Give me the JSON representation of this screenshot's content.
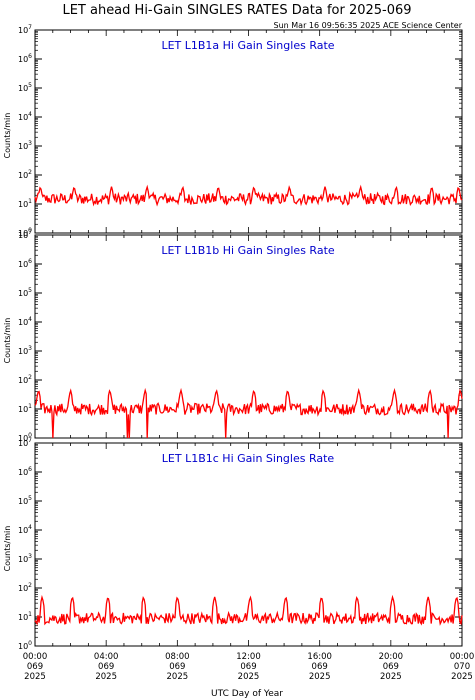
{
  "figure": {
    "title": "LET ahead Hi-Gain SINGLES RATES Data for 2025-069",
    "timestamp": "Sun Mar 16 09:56:35 2025 ACE Science Center",
    "xlabel": "UTC Day of Year"
  },
  "colors": {
    "series": "#ff0000",
    "panel_title": "#0000cc",
    "axes": "#000000"
  },
  "chart_data": [
    {
      "type": "line",
      "title": "LET L1B1a Hi Gain Singles Rate",
      "ylabel": "Counts/min",
      "yscale": "log",
      "ylim": [
        1,
        10000000
      ],
      "xlim": [
        0,
        24
      ],
      "x_unit": "hours UTC",
      "y_tick_labels": [
        "10^0",
        "10^1",
        "10^2",
        "10^3",
        "10^4",
        "10^5",
        "10^6",
        "10^7"
      ],
      "series": [
        {
          "values_description_free": true,
          "baseline": 15,
          "noise_low": 7,
          "noise_high": 30,
          "spike_max": 40,
          "spike_hours": [
            0.3,
            2.2,
            4.3,
            6.3,
            8.3,
            10.3,
            12.3,
            14.3,
            16.3,
            18.3,
            20.3,
            22.3,
            23.8
          ]
        }
      ]
    },
    {
      "type": "line",
      "title": "LET L1B1b Hi Gain Singles Rate",
      "ylabel": "Counts/min",
      "yscale": "log",
      "ylim": [
        1,
        10000000
      ],
      "xlim": [
        0,
        24
      ],
      "x_unit": "hours UTC",
      "y_tick_labels": [
        "10^0",
        "10^1",
        "10^2",
        "10^3",
        "10^4",
        "10^5",
        "10^6",
        "10^7"
      ],
      "series": [
        {
          "baseline": 10,
          "noise_low": 4,
          "noise_high": 25,
          "spike_max": 45,
          "spike_hours": [
            0.2,
            2.0,
            4.2,
            6.2,
            8.2,
            10.2,
            12.3,
            14.2,
            16.2,
            18.2,
            20.2,
            22.2,
            23.9
          ],
          "dip_hours": [
            1.0,
            5.2,
            5.3,
            6.3,
            10.7,
            23.2
          ]
        }
      ]
    },
    {
      "type": "line",
      "title": "LET L1B1c Hi Gain Singles Rate",
      "ylabel": "Counts/min",
      "yscale": "log",
      "ylim": [
        1,
        10000000
      ],
      "xlim": [
        0,
        24
      ],
      "x_unit": "hours UTC",
      "y_tick_labels": [
        "10^0",
        "10^1",
        "10^2",
        "10^3",
        "10^4",
        "10^5",
        "10^6",
        "10^7"
      ],
      "series": [
        {
          "baseline": 9,
          "noise_low": 4,
          "noise_high": 20,
          "spike_max": 50,
          "spike_hours": [
            0.4,
            2.1,
            4.1,
            6.1,
            8.0,
            10.1,
            12.1,
            14.1,
            16.1,
            18.1,
            20.1,
            22.1,
            23.7
          ]
        }
      ]
    }
  ],
  "x_ticks": [
    {
      "hour": 0,
      "time": "00:00",
      "doy": "069",
      "year": "2025"
    },
    {
      "hour": 4,
      "time": "04:00",
      "doy": "069",
      "year": "2025"
    },
    {
      "hour": 8,
      "time": "08:00",
      "doy": "069",
      "year": "2025"
    },
    {
      "hour": 12,
      "time": "12:00",
      "doy": "069",
      "year": "2025"
    },
    {
      "hour": 16,
      "time": "16:00",
      "doy": "069",
      "year": "2025"
    },
    {
      "hour": 20,
      "time": "20:00",
      "doy": "069",
      "year": "2025"
    },
    {
      "hour": 24,
      "time": "00:00",
      "doy": "070",
      "year": "2025"
    }
  ]
}
